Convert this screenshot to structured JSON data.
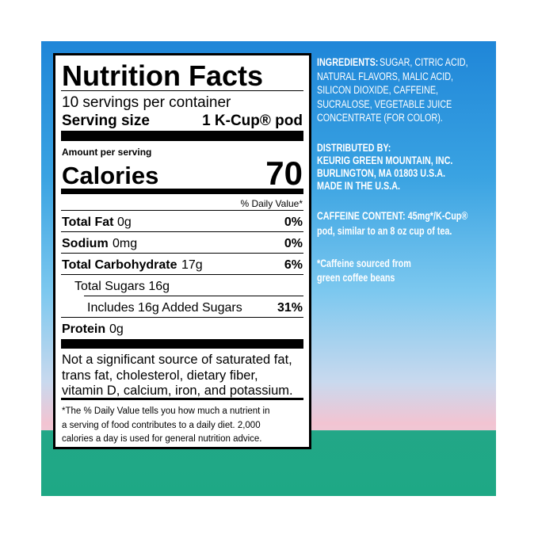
{
  "nutrition": {
    "title": "Nutrition Facts",
    "servings": "10 servings per container",
    "serving_size_label": "Serving size",
    "serving_size_value": "1 K-Cup® pod",
    "amount_per_serving": "Amount per serving",
    "calories_label": "Calories",
    "calories_value": "70",
    "daily_value_header": "% Daily Value*",
    "rows": [
      {
        "name": "Total Fat",
        "amount": "0g",
        "dv": "0%"
      },
      {
        "name": "Sodium",
        "amount": "0mg",
        "dv": "0%"
      },
      {
        "name": "Total Carbohydrate",
        "amount": "17g",
        "dv": "6%"
      },
      {
        "name": "Total Sugars 16g"
      },
      {
        "name": "Includes 16g Added Sugars",
        "dv": "31%"
      },
      {
        "name": "Protein",
        "amount": "0g"
      }
    ],
    "not_significant": [
      "Not a significant source of saturated fat,",
      "trans fat, cholesterol, dietary fiber,",
      "vitamin D, calcium, iron, and potassium."
    ],
    "footnote": [
      "*The % Daily Value tells you how much a nutrient in",
      "a serving of food contributes to a daily diet. 2,000",
      "calories a day is used for general nutrition advice."
    ]
  },
  "side": {
    "ingredients_label": "INGREDIENTS:",
    "ingredients": [
      "SUGAR, CITRIC ACID,",
      "NATURAL FLAVORS, MALIC ACID,",
      "SILICON DIOXIDE, CAFFEINE,",
      "SUCRALOSE, VEGETABLE JUICE",
      "CONCENTRATE (FOR COLOR)."
    ],
    "distributor": [
      "DISTRIBUTED BY:",
      "KEURIG GREEN MOUNTAIN, INC.",
      "BURLINGTON, MA 01803 U.S.A.",
      "MADE IN THE U.S.A."
    ],
    "caffeine": [
      "CAFFEINE CONTENT: 45mg*/K-Cup®",
      "pod, similar to an 8 oz cup of tea."
    ],
    "caffeine_note": [
      "*Caffeine sourced from",
      "green coffee beans"
    ]
  }
}
